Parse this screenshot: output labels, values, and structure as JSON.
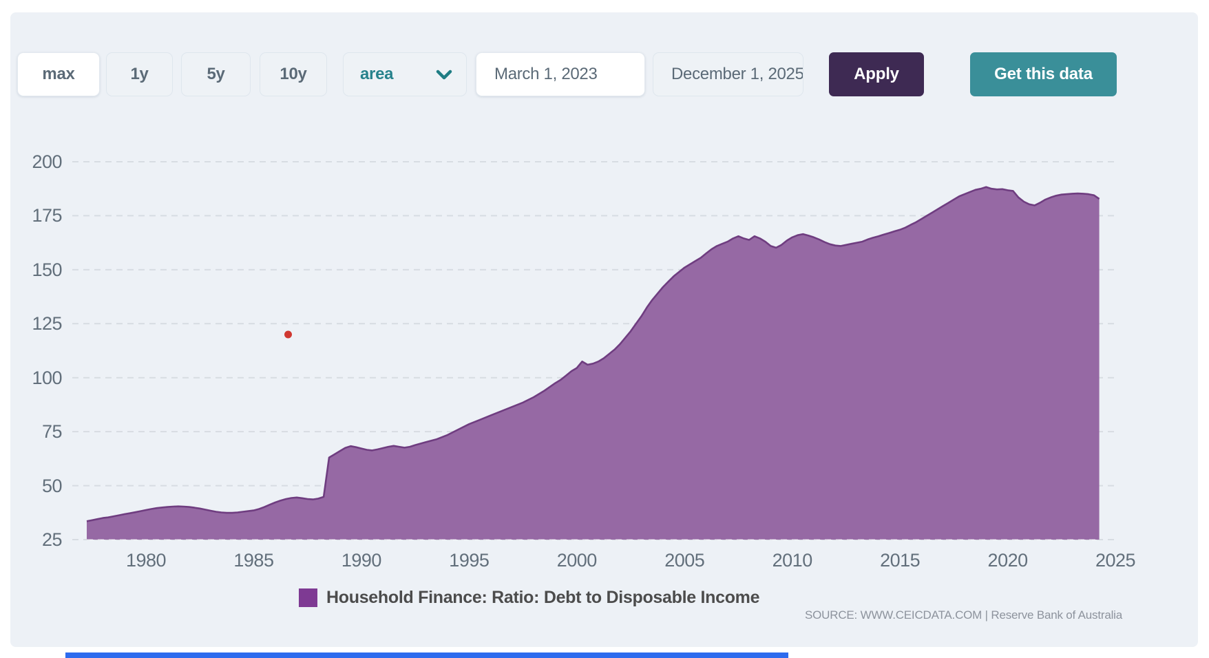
{
  "toolbar": {
    "range_buttons": [
      {
        "label": "max",
        "active": true
      },
      {
        "label": "1y",
        "active": false
      },
      {
        "label": "5y",
        "active": false
      },
      {
        "label": "10y",
        "active": false
      }
    ],
    "chart_type_select": {
      "value": "area"
    },
    "date_from": {
      "value": "March 1, 2023"
    },
    "date_to": {
      "value": "December 1, 2025"
    },
    "apply_label": "Apply",
    "get_data_label": "Get this data"
  },
  "legend": {
    "label": "Household Finance: Ratio: Debt to Disposable Income"
  },
  "source": {
    "text": "SOURCE: WWW.CEICDATA.COM | Reserve Bank of Australia"
  },
  "chart_data": {
    "type": "area",
    "title": "",
    "xlabel": "",
    "ylabel": "",
    "x_ticks": [
      1980,
      1985,
      1990,
      1995,
      2000,
      2005,
      2010,
      2015,
      2020,
      2025
    ],
    "y_ticks": [
      25,
      50,
      75,
      100,
      125,
      150,
      175,
      200
    ],
    "ylim": [
      25,
      200
    ],
    "xlim": [
      1977.25,
      2024.35
    ],
    "grid": "horizontal-dashed",
    "legend_position": "bottom",
    "colors": {
      "area_fill": "#9669a4",
      "area_stroke": "#6f3d80",
      "legend_swatch": "#7e3a93",
      "gridline": "#d7dce2",
      "marker_dot": "#d03831",
      "background": "#edf1f6"
    },
    "marker_dot": {
      "x": 1986.6,
      "y": 120
    },
    "series": [
      {
        "name": "Household Finance: Ratio: Debt to Disposable Income",
        "points": [
          [
            1977.25,
            33.5
          ],
          [
            1977.5,
            34
          ],
          [
            1977.75,
            34.5
          ],
          [
            1978,
            35
          ],
          [
            1978.25,
            35.3
          ],
          [
            1978.5,
            35.8
          ],
          [
            1978.75,
            36.3
          ],
          [
            1979,
            36.8
          ],
          [
            1979.25,
            37.2
          ],
          [
            1979.5,
            37.7
          ],
          [
            1979.75,
            38.2
          ],
          [
            1980,
            38.7
          ],
          [
            1980.25,
            39.2
          ],
          [
            1980.5,
            39.6
          ],
          [
            1980.75,
            39.9
          ],
          [
            1981,
            40.1
          ],
          [
            1981.25,
            40.3
          ],
          [
            1981.5,
            40.4
          ],
          [
            1981.75,
            40.3
          ],
          [
            1982,
            40.1
          ],
          [
            1982.25,
            39.8
          ],
          [
            1982.5,
            39.4
          ],
          [
            1982.75,
            38.9
          ],
          [
            1983,
            38.4
          ],
          [
            1983.25,
            37.9
          ],
          [
            1983.5,
            37.6
          ],
          [
            1983.75,
            37.4
          ],
          [
            1984,
            37.4
          ],
          [
            1984.25,
            37.6
          ],
          [
            1984.5,
            37.9
          ],
          [
            1984.75,
            38.2
          ],
          [
            1985,
            38.5
          ],
          [
            1985.25,
            39.2
          ],
          [
            1985.5,
            40.1
          ],
          [
            1985.75,
            41.2
          ],
          [
            1986,
            42.2
          ],
          [
            1986.25,
            43.1
          ],
          [
            1986.5,
            43.8
          ],
          [
            1986.75,
            44.3
          ],
          [
            1987,
            44.5
          ],
          [
            1987.25,
            44.2
          ],
          [
            1987.5,
            43.8
          ],
          [
            1987.75,
            43.6
          ],
          [
            1988,
            44
          ],
          [
            1988.25,
            44.8
          ],
          [
            1988.5,
            63
          ],
          [
            1988.75,
            64.5
          ],
          [
            1989,
            66
          ],
          [
            1989.25,
            67.5
          ],
          [
            1989.5,
            68.3
          ],
          [
            1989.75,
            67.8
          ],
          [
            1990,
            67.2
          ],
          [
            1990.25,
            66.6
          ],
          [
            1990.5,
            66.3
          ],
          [
            1990.75,
            66.8
          ],
          [
            1991,
            67.4
          ],
          [
            1991.25,
            68
          ],
          [
            1991.5,
            68.4
          ],
          [
            1991.75,
            68
          ],
          [
            1992,
            67.6
          ],
          [
            1992.25,
            68
          ],
          [
            1992.5,
            68.8
          ],
          [
            1993,
            70.2
          ],
          [
            1993.5,
            71.5
          ],
          [
            1994,
            73.5
          ],
          [
            1994.5,
            76
          ],
          [
            1995,
            78.5
          ],
          [
            1995.5,
            80.5
          ],
          [
            1996,
            82.5
          ],
          [
            1996.5,
            84.5
          ],
          [
            1997,
            86.5
          ],
          [
            1997.5,
            88.5
          ],
          [
            1998,
            91
          ],
          [
            1998.5,
            94
          ],
          [
            1999,
            97.5
          ],
          [
            1999.25,
            99
          ],
          [
            1999.5,
            101
          ],
          [
            1999.75,
            103
          ],
          [
            2000,
            104.5
          ],
          [
            2000.25,
            107.5
          ],
          [
            2000.5,
            106
          ],
          [
            2000.75,
            106.5
          ],
          [
            2001,
            107.5
          ],
          [
            2001.25,
            109
          ],
          [
            2001.5,
            111
          ],
          [
            2001.75,
            113
          ],
          [
            2002,
            115.5
          ],
          [
            2002.25,
            118.5
          ],
          [
            2002.5,
            121.5
          ],
          [
            2002.75,
            125
          ],
          [
            2003,
            128.5
          ],
          [
            2003.25,
            132.5
          ],
          [
            2003.5,
            136
          ],
          [
            2003.75,
            139
          ],
          [
            2004,
            142
          ],
          [
            2004.25,
            144.5
          ],
          [
            2004.5,
            147
          ],
          [
            2004.75,
            149
          ],
          [
            2005,
            151
          ],
          [
            2005.25,
            152.5
          ],
          [
            2005.5,
            154
          ],
          [
            2005.75,
            155.5
          ],
          [
            2006,
            157.5
          ],
          [
            2006.25,
            159.5
          ],
          [
            2006.5,
            161
          ],
          [
            2006.75,
            162
          ],
          [
            2007,
            163
          ],
          [
            2007.25,
            164.5
          ],
          [
            2007.5,
            165.5
          ],
          [
            2007.75,
            164.5
          ],
          [
            2008,
            163.8
          ],
          [
            2008.25,
            165.5
          ],
          [
            2008.5,
            164.5
          ],
          [
            2008.75,
            163
          ],
          [
            2009,
            161
          ],
          [
            2009.25,
            160.2
          ],
          [
            2009.5,
            161.5
          ],
          [
            2009.75,
            163.5
          ],
          [
            2010,
            165
          ],
          [
            2010.25,
            166
          ],
          [
            2010.5,
            166.5
          ],
          [
            2010.75,
            165.8
          ],
          [
            2011,
            165
          ],
          [
            2011.25,
            164
          ],
          [
            2011.5,
            162.8
          ],
          [
            2011.75,
            161.8
          ],
          [
            2012,
            161.2
          ],
          [
            2012.25,
            161
          ],
          [
            2012.5,
            161.5
          ],
          [
            2012.75,
            162
          ],
          [
            2013,
            162.5
          ],
          [
            2013.25,
            163
          ],
          [
            2013.5,
            164
          ],
          [
            2013.75,
            164.8
          ],
          [
            2014,
            165.5
          ],
          [
            2014.25,
            166.3
          ],
          [
            2014.5,
            167
          ],
          [
            2014.75,
            167.8
          ],
          [
            2015,
            168.5
          ],
          [
            2015.25,
            169.5
          ],
          [
            2015.5,
            170.8
          ],
          [
            2015.75,
            172
          ],
          [
            2016,
            173.5
          ],
          [
            2016.25,
            175
          ],
          [
            2016.5,
            176.5
          ],
          [
            2016.75,
            178
          ],
          [
            2017,
            179.5
          ],
          [
            2017.25,
            181
          ],
          [
            2017.5,
            182.5
          ],
          [
            2017.75,
            184
          ],
          [
            2018,
            185
          ],
          [
            2018.25,
            186
          ],
          [
            2018.5,
            187
          ],
          [
            2018.75,
            187.5
          ],
          [
            2019,
            188.3
          ],
          [
            2019.25,
            187.5
          ],
          [
            2019.5,
            187.2
          ],
          [
            2019.75,
            187.3
          ],
          [
            2020,
            186.8
          ],
          [
            2020.25,
            186.5
          ],
          [
            2020.5,
            183.5
          ],
          [
            2020.75,
            181.5
          ],
          [
            2021,
            180.3
          ],
          [
            2021.25,
            179.8
          ],
          [
            2021.5,
            181
          ],
          [
            2021.75,
            182.5
          ],
          [
            2022,
            183.5
          ],
          [
            2022.25,
            184.3
          ],
          [
            2022.5,
            184.8
          ],
          [
            2022.75,
            185
          ],
          [
            2023,
            185.2
          ],
          [
            2023.25,
            185.3
          ],
          [
            2023.5,
            185.2
          ],
          [
            2023.75,
            185
          ],
          [
            2024,
            184.5
          ],
          [
            2024.25,
            182.8
          ]
        ]
      }
    ]
  }
}
